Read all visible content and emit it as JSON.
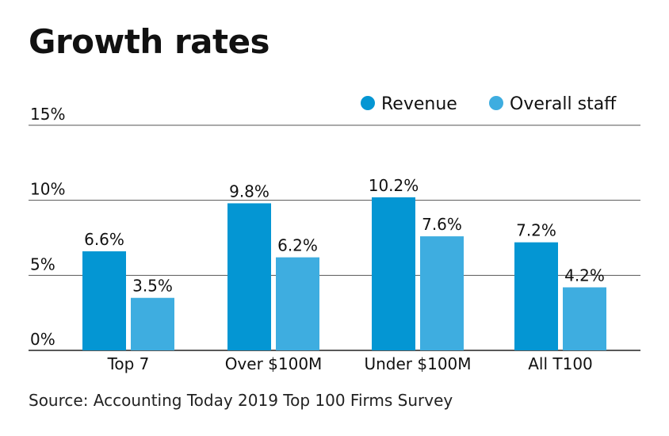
{
  "chart_data": {
    "type": "bar",
    "title": "Growth rates",
    "categories": [
      "Top 7",
      "Over $100M",
      "Under $100M",
      "All T100"
    ],
    "series": [
      {
        "name": "Revenue",
        "values": [
          6.6,
          9.8,
          10.2,
          7.2
        ],
        "labels": [
          "6.6%",
          "9.8%",
          "10.2%",
          "7.2%"
        ],
        "color": "#0496d3"
      },
      {
        "name": "Overall staff",
        "values": [
          3.5,
          6.2,
          7.6,
          4.2
        ],
        "labels": [
          "3.5%",
          "6.2%",
          "7.6%",
          "4.2%"
        ],
        "color": "#3eade0"
      }
    ],
    "yticks": [
      {
        "value": 0,
        "label": "0%"
      },
      {
        "value": 5,
        "label": "5%"
      },
      {
        "value": 10,
        "label": "10%"
      },
      {
        "value": 15,
        "label": "15%"
      }
    ],
    "ylim": [
      0,
      15
    ],
    "xlabel": "",
    "ylabel": "",
    "grid": true,
    "legend_position": "top-right",
    "source": "Source: Accounting Today 2019 Top 100 Firms Survey"
  }
}
